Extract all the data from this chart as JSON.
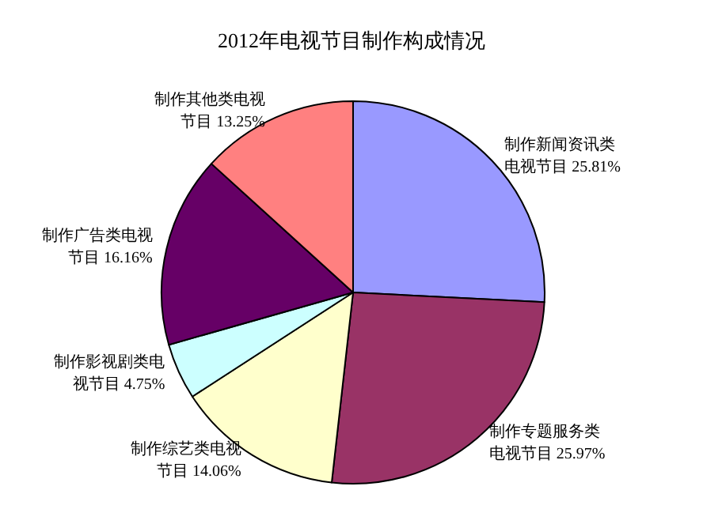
{
  "chart_data": {
    "type": "pie",
    "title": "2012年电视节目制作构成情况",
    "categories": [
      "制作新闻资讯类电视节目",
      "制作专题服务类电视节目",
      "制作综艺类电视节目",
      "制作影视剧类电视节目",
      "制作广告类电视节目",
      "制作其他类电视节目"
    ],
    "values": [
      25.81,
      25.97,
      14.06,
      4.75,
      16.16,
      13.25
    ],
    "colors": [
      "#9999ff",
      "#993366",
      "#ffffcc",
      "#ccffff",
      "#660066",
      "#ff8080"
    ],
    "value_labels": [
      "25.81%",
      "25.97%",
      "14.06%",
      "4.75%",
      "16.16%",
      "13.25%"
    ],
    "legend": false
  }
}
